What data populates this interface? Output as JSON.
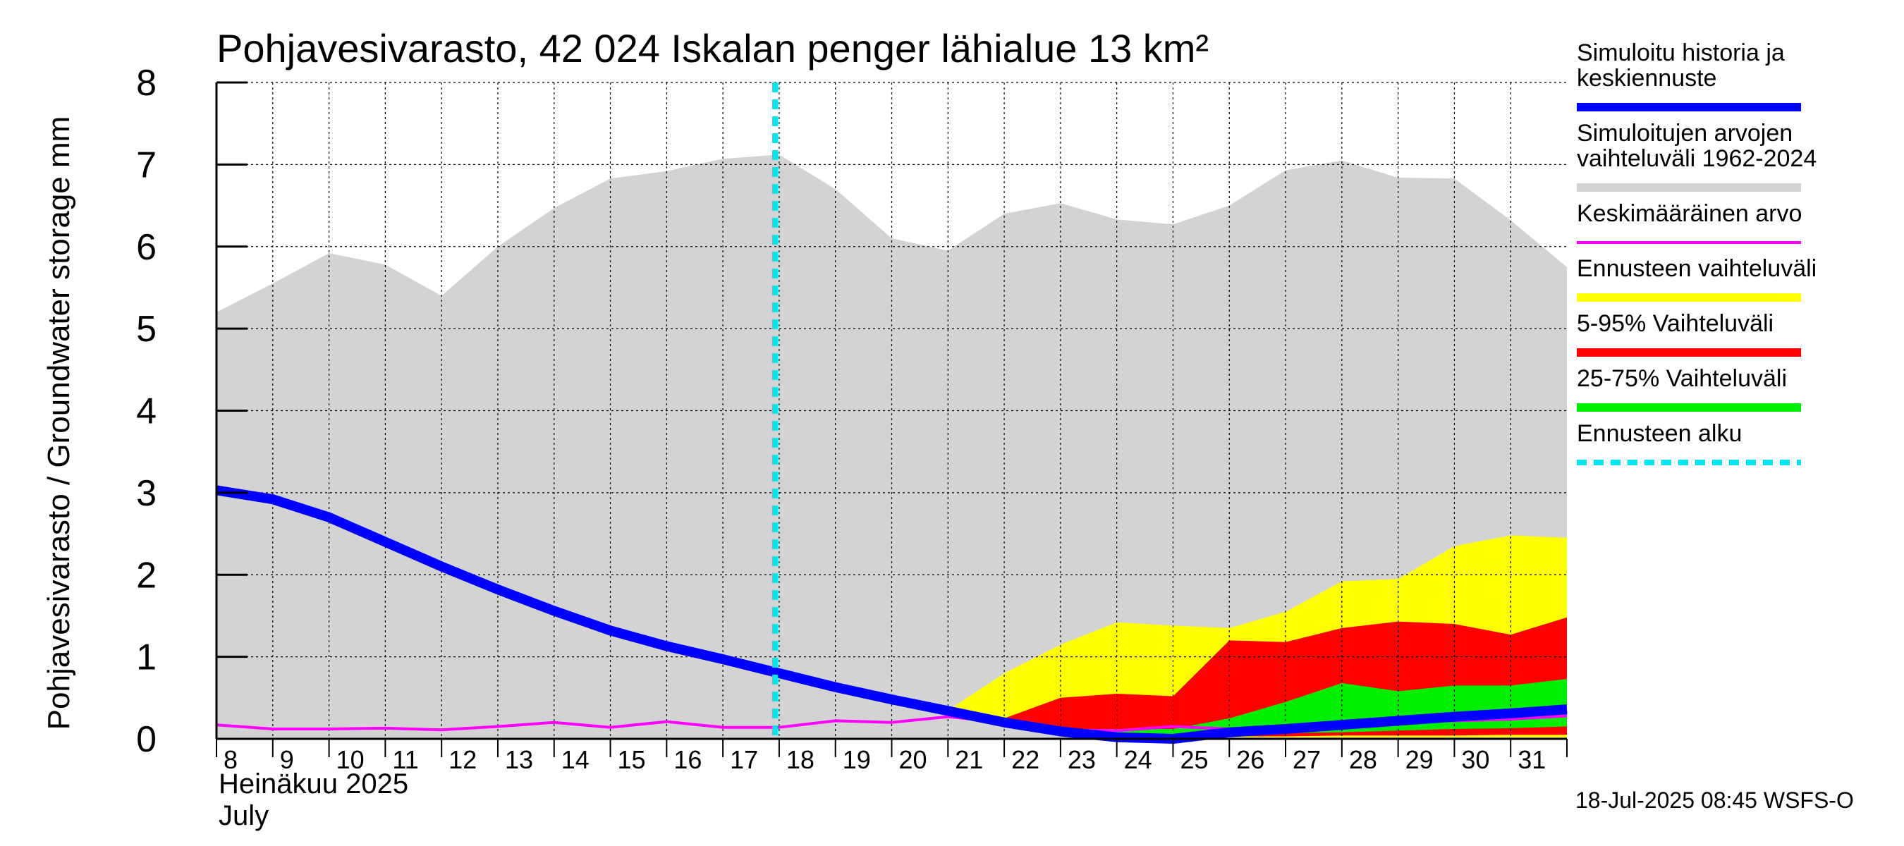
{
  "chart_data": {
    "type": "area",
    "title": "Pohjavesivarasto, 42 024 Iskalan penger lähialue 13 km²",
    "ylabel": "Pohjavesivarasto / Groundwater storage   mm",
    "month_label_fi": "Heinäkuu  2025",
    "month_label_en": "July",
    "ylim": [
      0,
      8
    ],
    "y_ticks": [
      "0",
      "1",
      "2",
      "3",
      "4",
      "5",
      "6",
      "7",
      "8"
    ],
    "x_day_start": 8,
    "x_day_end": 32,
    "x_tick_labels": [
      "8",
      "9",
      "10",
      "11",
      "12",
      "13",
      "14",
      "15",
      "16",
      "17",
      "18",
      "19",
      "20",
      "21",
      "22",
      "23",
      "24",
      "25",
      "26",
      "27",
      "28",
      "29",
      "30",
      "31"
    ],
    "forecast_start_day": 18,
    "footer": "18-Jul-2025 08:45 WSFS-O",
    "series": {
      "range_hist": {
        "name": "Simuloitujen arvojen vaihteluväli 1962-2024",
        "color": "#d3d3d3",
        "x": [
          8,
          9,
          10,
          11,
          12,
          13,
          14,
          15,
          16,
          17,
          18,
          19,
          20,
          21,
          22,
          23,
          24,
          25,
          26,
          27,
          28,
          29,
          30,
          31,
          32
        ],
        "upper": [
          5.2,
          5.55,
          5.92,
          5.78,
          5.4,
          6.0,
          6.47,
          6.83,
          6.92,
          7.07,
          7.12,
          6.7,
          6.1,
          5.95,
          6.4,
          6.53,
          6.33,
          6.27,
          6.5,
          6.93,
          7.05,
          6.84,
          6.83,
          6.32,
          5.75
        ],
        "lower": [
          0,
          0,
          0,
          0,
          0,
          0,
          0,
          0,
          0,
          0,
          0,
          0,
          0,
          0,
          0,
          0,
          0,
          0,
          0,
          0,
          0,
          0,
          0,
          0,
          0
        ]
      },
      "forecast_range": {
        "name": "Ennusteen vaihteluväli",
        "color": "#ffff00",
        "x": [
          21,
          22,
          23,
          24,
          25,
          26,
          27,
          28,
          29,
          30,
          31,
          32
        ],
        "upper": [
          0.35,
          0.8,
          1.15,
          1.42,
          1.38,
          1.35,
          1.55,
          1.92,
          1.95,
          2.35,
          2.48,
          2.45
        ],
        "lower": [
          0.3,
          0.2,
          0.1,
          0.05,
          0.02,
          0.02,
          0.02,
          0.02,
          0.02,
          0.02,
          0.02,
          0.02
        ]
      },
      "band_5_95": {
        "name": "5-95% Vaihteluväli",
        "color": "#ff0000",
        "x": [
          22,
          23,
          24,
          25,
          26,
          27,
          28,
          29,
          30,
          31,
          32
        ],
        "upper": [
          0.25,
          0.5,
          0.55,
          0.52,
          1.2,
          1.18,
          1.35,
          1.43,
          1.4,
          1.27,
          1.48
        ],
        "lower": [
          0.2,
          0.1,
          0.05,
          0.03,
          0.03,
          0.03,
          0.04,
          0.04,
          0.04,
          0.05,
          0.05
        ]
      },
      "band_25_75": {
        "name": "25-75% Vaihteluväli",
        "color": "#00ee00",
        "x": [
          23,
          24,
          25,
          26,
          27,
          28,
          29,
          30,
          31,
          32
        ],
        "upper": [
          0.12,
          0.12,
          0.12,
          0.25,
          0.45,
          0.68,
          0.58,
          0.65,
          0.65,
          0.73
        ],
        "lower": [
          0.06,
          0.04,
          0.03,
          0.05,
          0.07,
          0.08,
          0.1,
          0.12,
          0.13,
          0.15
        ]
      },
      "mean": {
        "name": "Keskimääräinen arvo",
        "color": "#ff00ff",
        "x": [
          8,
          9,
          10,
          11,
          12,
          13,
          14,
          15,
          16,
          17,
          18,
          19,
          20,
          21,
          22,
          23,
          24,
          25,
          26,
          27,
          28,
          29,
          30,
          31,
          32
        ],
        "values": [
          0.17,
          0.12,
          0.12,
          0.13,
          0.11,
          0.15,
          0.2,
          0.14,
          0.21,
          0.14,
          0.14,
          0.22,
          0.2,
          0.27,
          0.2,
          0.11,
          0.1,
          0.15,
          0.12,
          0.15,
          0.17,
          0.22,
          0.22,
          0.24,
          0.28
        ]
      },
      "simulated": {
        "name": "Simuloitu historia ja keskiennuste",
        "color": "#0000ff",
        "x": [
          8,
          9,
          10,
          11,
          12,
          13,
          14,
          15,
          16,
          17,
          18,
          19,
          20,
          21,
          22,
          23,
          24,
          25,
          26,
          27,
          28,
          29,
          30,
          31,
          32
        ],
        "values": [
          3.03,
          2.92,
          2.7,
          2.4,
          2.1,
          1.82,
          1.56,
          1.32,
          1.13,
          0.97,
          0.8,
          0.63,
          0.48,
          0.34,
          0.2,
          0.09,
          0.02,
          0.0,
          0.08,
          0.12,
          0.17,
          0.22,
          0.27,
          0.31,
          0.36
        ]
      }
    },
    "legend": [
      {
        "key": "simulated",
        "label_lines": [
          "Simuloitu historia ja",
          "keskiennuste"
        ],
        "color": "#0000ff",
        "style": "solid"
      },
      {
        "key": "range_hist",
        "label_lines": [
          "Simuloitujen arvojen",
          "vaihteluväli 1962-2024"
        ],
        "color": "#d3d3d3",
        "style": "solid"
      },
      {
        "key": "mean",
        "label_lines": [
          "Keskimääräinen arvo"
        ],
        "color": "#ff00ff",
        "style": "thin"
      },
      {
        "key": "forecast_range",
        "label_lines": [
          "Ennusteen vaihteluväli"
        ],
        "color": "#ffff00",
        "style": "solid"
      },
      {
        "key": "band_5_95",
        "label_lines": [
          "5-95% Vaihteluväli"
        ],
        "color": "#ff0000",
        "style": "solid"
      },
      {
        "key": "band_25_75",
        "label_lines": [
          "25-75% Vaihteluväli"
        ],
        "color": "#00ee00",
        "style": "solid"
      },
      {
        "key": "forecast_start",
        "label_lines": [
          "Ennusteen alku"
        ],
        "color": "#00e5ee",
        "style": "dashed"
      }
    ]
  }
}
